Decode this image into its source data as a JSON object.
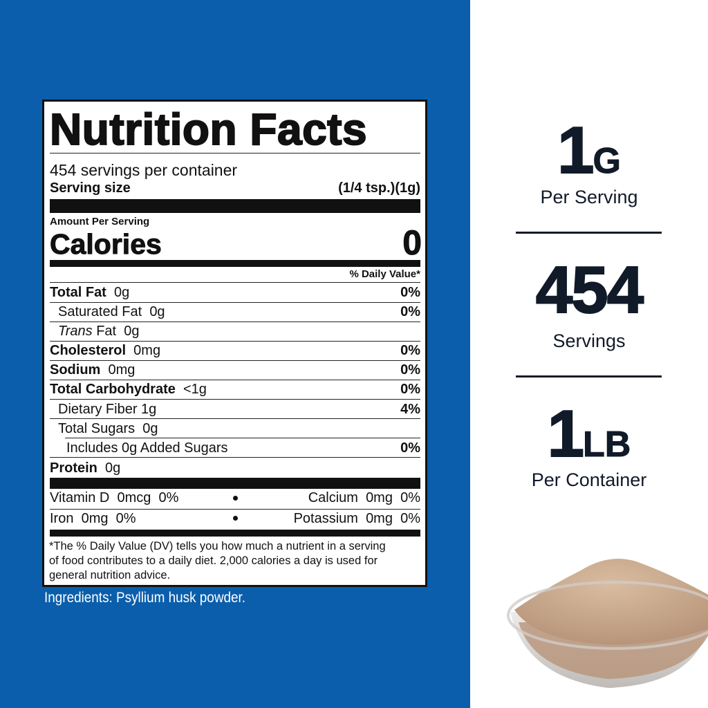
{
  "label": {
    "title": "Nutrition Facts",
    "servings_per_container": "454 servings per container",
    "serving_size_label": "Serving size",
    "serving_size": "(1/4 tsp.)(1g)",
    "amount_per_serving": "Amount Per Serving",
    "calories_label": "Calories",
    "calories": 0,
    "daily_value_header": "% Daily Value*",
    "nutrients": [
      {
        "name": "Total Fat",
        "amount": "0g",
        "dv": "0%"
      },
      {
        "name": "Saturated Fat",
        "amount": "0g",
        "dv": "0%"
      },
      {
        "name_italic": "Trans",
        "name": "Fat",
        "amount": "0g"
      },
      {
        "name": "Cholesterol",
        "amount": "0mg",
        "dv": "0%"
      },
      {
        "name": "Sodium",
        "amount": "0mg",
        "dv": "0%"
      },
      {
        "name": "Total Carbohydrate",
        "amount": "<1g",
        "dv": "0%"
      },
      {
        "name": "Dietary Fiber",
        "amount": "1g",
        "dv": "4%"
      },
      {
        "name": "Total Sugars",
        "amount": "0g"
      },
      {
        "name": "Includes 0g Added Sugars",
        "dv": "0%"
      },
      {
        "name": "Protein",
        "amount": "0g"
      }
    ],
    "micronutrients": [
      [
        {
          "name": "Vitamin D",
          "amount": "0mcg",
          "dv": "0%"
        },
        {
          "name": "Calcium",
          "amount": "0mg",
          "dv": "0%"
        }
      ],
      [
        {
          "name": "Iron",
          "amount": "0mg",
          "dv": "0%"
        },
        {
          "name": "Potassium",
          "amount": "0mg",
          "dv": "0%"
        }
      ]
    ],
    "footnote": [
      "*The % Daily Value (DV) tells you how much a nutrient in a serving",
      "of food contributes to a daily diet.  2,000 calories a day is used for",
      "general nutrition advice."
    ]
  },
  "ingredients": "Ingredients: Psyllium husk powder.",
  "highlights": [
    {
      "number": "1",
      "unit": "G",
      "caption": "Per Serving"
    },
    {
      "number": "454",
      "caption": "Servings"
    },
    {
      "number": "1",
      "unit": "LB",
      "caption": "Per Container"
    }
  ]
}
